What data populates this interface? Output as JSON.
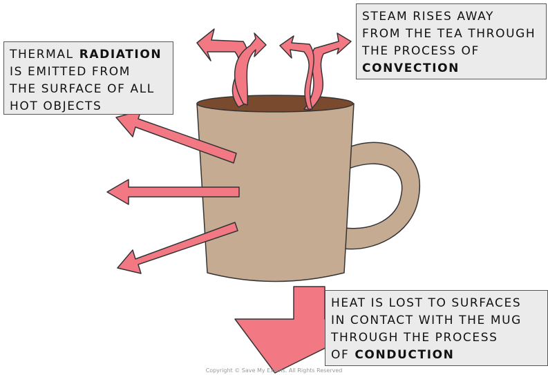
{
  "boxes": [
    {
      "lines": [
        [
          "THERMAL",
          {
            "text": "RADIATION",
            "bold": true
          }
        ],
        [
          "IS EMITTED FROM"
        ],
        [
          "THE SURFACE OF ALL"
        ],
        [
          "HOT OBJECTS"
        ]
      ]
    },
    {
      "lines": [
        [
          "STEAM RISES AWAY"
        ],
        [
          "FROM THE TEA THROUGH"
        ],
        [
          "THE PROCESS OF"
        ],
        [
          {
            "text": "CONVECTION",
            "bold": true
          }
        ]
      ]
    },
    {
      "lines": [
        [
          "HEAT IS LOST TO SURFACES"
        ],
        [
          "IN CONTACT WITH THE MUG"
        ],
        [
          "THROUGH THE PROCESS"
        ],
        [
          "OF",
          {
            "text": "CONDUCTION",
            "bold": true
          }
        ]
      ]
    }
  ],
  "copyright": "Copyright © Save My Exams. All Rights Reserved"
}
